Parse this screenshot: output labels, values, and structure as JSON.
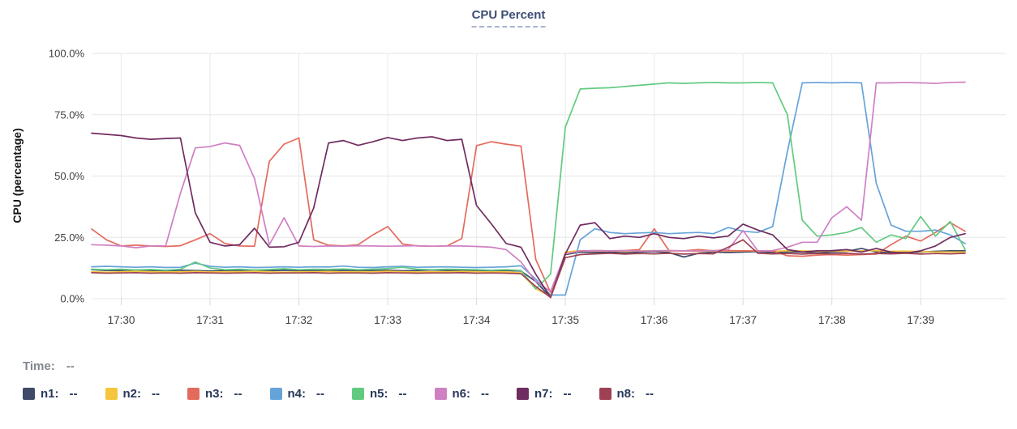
{
  "header": {
    "title": "CPU Percent"
  },
  "axes": {
    "y_title": "CPU (percentage)",
    "y_ticks": [
      "0.0%",
      "25.0%",
      "50.0%",
      "75.0%",
      "100.0%"
    ],
    "x_ticks": [
      "17:30",
      "17:31",
      "17:32",
      "17:33",
      "17:34",
      "17:35",
      "17:36",
      "17:37",
      "17:38",
      "17:39"
    ]
  },
  "footer": {
    "time_label": "Time:",
    "time_value": "--"
  },
  "chart_data": {
    "type": "line",
    "title": "CPU Percent",
    "xlabel": "",
    "ylabel": "CPU (percentage)",
    "ylim": [
      0,
      100
    ],
    "grid": true,
    "legend_position": "bottom",
    "y_tick_values": [
      0,
      25,
      50,
      75,
      100
    ],
    "y_tick_labels": [
      "0.0%",
      "25.0%",
      "50.0%",
      "75.0%",
      "100.0%"
    ],
    "x_tick_labels": [
      "17:30",
      "17:31",
      "17:32",
      "17:33",
      "17:34",
      "17:35",
      "17:36",
      "17:37",
      "17:38",
      "17:39"
    ],
    "start_time": "17:29:40",
    "sample_interval_seconds": 10,
    "series": [
      {
        "name": "n1",
        "legend_label": "n1:",
        "legend_value": "--",
        "color": "#3e4a68",
        "values": [
          11.8,
          11.5,
          11.5,
          11.7,
          11.5,
          11.4,
          11.6,
          11.5,
          11.3,
          11.5,
          11.6,
          11.5,
          11.4,
          11.6,
          11.5,
          11.4,
          11.5,
          11.6,
          11.5,
          11.5,
          11.6,
          11.4,
          11.5,
          11.7,
          11.5,
          11.5,
          11.6,
          11.4,
          11.5,
          11.3,
          7,
          0.5,
          18,
          19,
          18.8,
          19,
          18.7,
          19,
          19.2,
          18.8,
          17,
          18.5,
          19,
          18.8,
          19,
          19.2,
          18.8,
          19,
          19,
          18.7,
          19,
          19.3,
          20.5,
          19,
          18.8,
          19,
          19,
          19.3,
          19.5,
          19.5
        ]
      },
      {
        "name": "n2",
        "legend_label": "n2:",
        "legend_value": "--",
        "color": "#f5c63c",
        "values": [
          11,
          10.8,
          11,
          11.2,
          11,
          10.9,
          11,
          11.1,
          10.9,
          11,
          11,
          11.2,
          11,
          10.8,
          11,
          11,
          11.1,
          10.9,
          11,
          11,
          11.2,
          11,
          10.9,
          11,
          11,
          11.1,
          11,
          10.9,
          11,
          10.5,
          4,
          1,
          19,
          19.6,
          19.4,
          19.5,
          19.3,
          19.5,
          19.6,
          19.4,
          19.5,
          19.3,
          19.5,
          19.4,
          19.5,
          19.6,
          19.4,
          19.5,
          19.5,
          19.3,
          19.5,
          19.4,
          19.5,
          19.6,
          19.3,
          19.4,
          19.2,
          19,
          19,
          19
        ]
      },
      {
        "name": "n3",
        "legend_label": "n3:",
        "legend_value": "--",
        "color": "#e56a5e",
        "values": [
          28.4,
          24,
          21.5,
          21.8,
          21.5,
          21.3,
          21.6,
          24,
          26.5,
          22.5,
          21.5,
          21.4,
          56,
          63,
          65.5,
          24,
          21.8,
          21.5,
          22,
          26,
          29.4,
          22.3,
          21.5,
          21.4,
          21.5,
          24.5,
          62.4,
          64,
          63,
          62.2,
          16,
          2.5,
          18.3,
          19.4,
          19.6,
          19.5,
          19.6,
          20,
          28.5,
          19.6,
          19.5,
          20,
          19.5,
          19.6,
          19.5,
          19.4,
          19.5,
          17.5,
          17.3,
          17.8,
          18,
          17.8,
          18,
          18.2,
          22,
          25.5,
          23.5,
          27,
          31,
          27.5
        ]
      },
      {
        "name": "n4",
        "legend_label": "n4:",
        "legend_value": "--",
        "color": "#66a3da",
        "values": [
          13,
          13.2,
          13,
          12.8,
          13,
          12.7,
          12.8,
          14.5,
          13.2,
          12.8,
          13,
          12.7,
          12.8,
          13,
          12.8,
          13,
          12.9,
          13.3,
          12.8,
          12.7,
          13,
          13.2,
          12.8,
          12.9,
          13,
          12.8,
          12.7,
          12.8,
          13,
          13.4,
          8,
          1.5,
          1.5,
          24,
          28.5,
          27,
          26.5,
          26.8,
          27,
          26.5,
          26.8,
          27,
          26.5,
          29,
          27.5,
          27,
          29.4,
          60,
          88,
          88.2,
          88,
          88.2,
          88,
          47,
          30,
          27.5,
          27.5,
          28,
          26,
          22.5
        ]
      },
      {
        "name": "n5",
        "legend_label": "n5:",
        "legend_value": "--",
        "color": "#62ca80",
        "values": [
          12,
          11.8,
          12,
          11.7,
          11.9,
          11.6,
          12,
          15,
          12.5,
          11.8,
          12,
          11.7,
          11.9,
          12.2,
          11.8,
          12,
          11.9,
          12.1,
          11.8,
          12,
          12.3,
          12.8,
          12,
          11.8,
          12,
          11.9,
          11.8,
          11.6,
          11.8,
          11.5,
          4,
          10,
          70,
          85.5,
          85.8,
          86,
          86.5,
          87,
          87.5,
          88,
          87.8,
          88,
          88.2,
          88,
          88,
          88.2,
          88,
          75,
          32,
          25.5,
          26,
          27,
          29,
          23,
          26,
          24.5,
          33.5,
          25.5,
          31.5,
          20
        ]
      },
      {
        "name": "n6",
        "legend_label": "n6:",
        "legend_value": "--",
        "color": "#cf80c3",
        "values": [
          22,
          21.8,
          21.5,
          20.8,
          21.5,
          21.6,
          43,
          61.5,
          62,
          63.5,
          62.5,
          49,
          22,
          33,
          21.5,
          21.3,
          21.5,
          21.4,
          21.6,
          21.5,
          21.4,
          21.5,
          21.6,
          21.4,
          21.5,
          21.5,
          21.3,
          21,
          20,
          15,
          7,
          3,
          18.3,
          19.5,
          19.6,
          19.5,
          19.6,
          19.4,
          19.5,
          19.6,
          19.5,
          19.4,
          19.6,
          20,
          27.8,
          19.5,
          19.6,
          21,
          23,
          23,
          33,
          37.5,
          32,
          88,
          88,
          88.2,
          88,
          87.8,
          88.2,
          88.3
        ]
      },
      {
        "name": "n7",
        "legend_label": "n7:",
        "legend_value": "--",
        "color": "#6f2c60",
        "values": [
          67.5,
          67,
          66.5,
          65.5,
          65,
          65.3,
          65.5,
          35,
          23,
          21.5,
          22,
          28.7,
          21,
          21.2,
          23,
          37,
          63.5,
          64.5,
          62.5,
          64,
          65.7,
          64.5,
          65.5,
          66,
          64.5,
          65,
          38,
          30.5,
          22.5,
          21,
          10,
          0.5,
          18.3,
          30,
          31,
          24.5,
          25.5,
          25,
          26.5,
          25,
          24.5,
          25.5,
          24.8,
          25.5,
          30.4,
          28,
          26,
          20,
          19,
          19.5,
          19.6,
          20,
          19,
          20.5,
          19,
          18.5,
          19.5,
          21.5,
          25,
          26.5
        ]
      },
      {
        "name": "n8",
        "legend_label": "n8:",
        "legend_value": "--",
        "color": "#9e4253",
        "values": [
          10.6,
          10.4,
          10.5,
          10.6,
          10.4,
          10.5,
          10.4,
          10.6,
          10.5,
          10.4,
          10.5,
          10.6,
          10.4,
          10.5,
          10.5,
          10.6,
          10.4,
          10.5,
          10.5,
          10.4,
          10.6,
          10.5,
          10.4,
          10.5,
          10.5,
          10.6,
          10.4,
          10.5,
          10.4,
          10.2,
          5,
          0.5,
          16.7,
          18,
          18.3,
          18.5,
          18.2,
          18.4,
          18.3,
          18.5,
          18.2,
          18.4,
          18.3,
          21,
          24,
          18.5,
          18.3,
          18.4,
          18.2,
          18.4,
          18.3,
          18.5,
          18.2,
          18.4,
          18.3,
          18.5,
          18.2,
          18.4,
          18.3,
          18.5
        ]
      }
    ]
  }
}
